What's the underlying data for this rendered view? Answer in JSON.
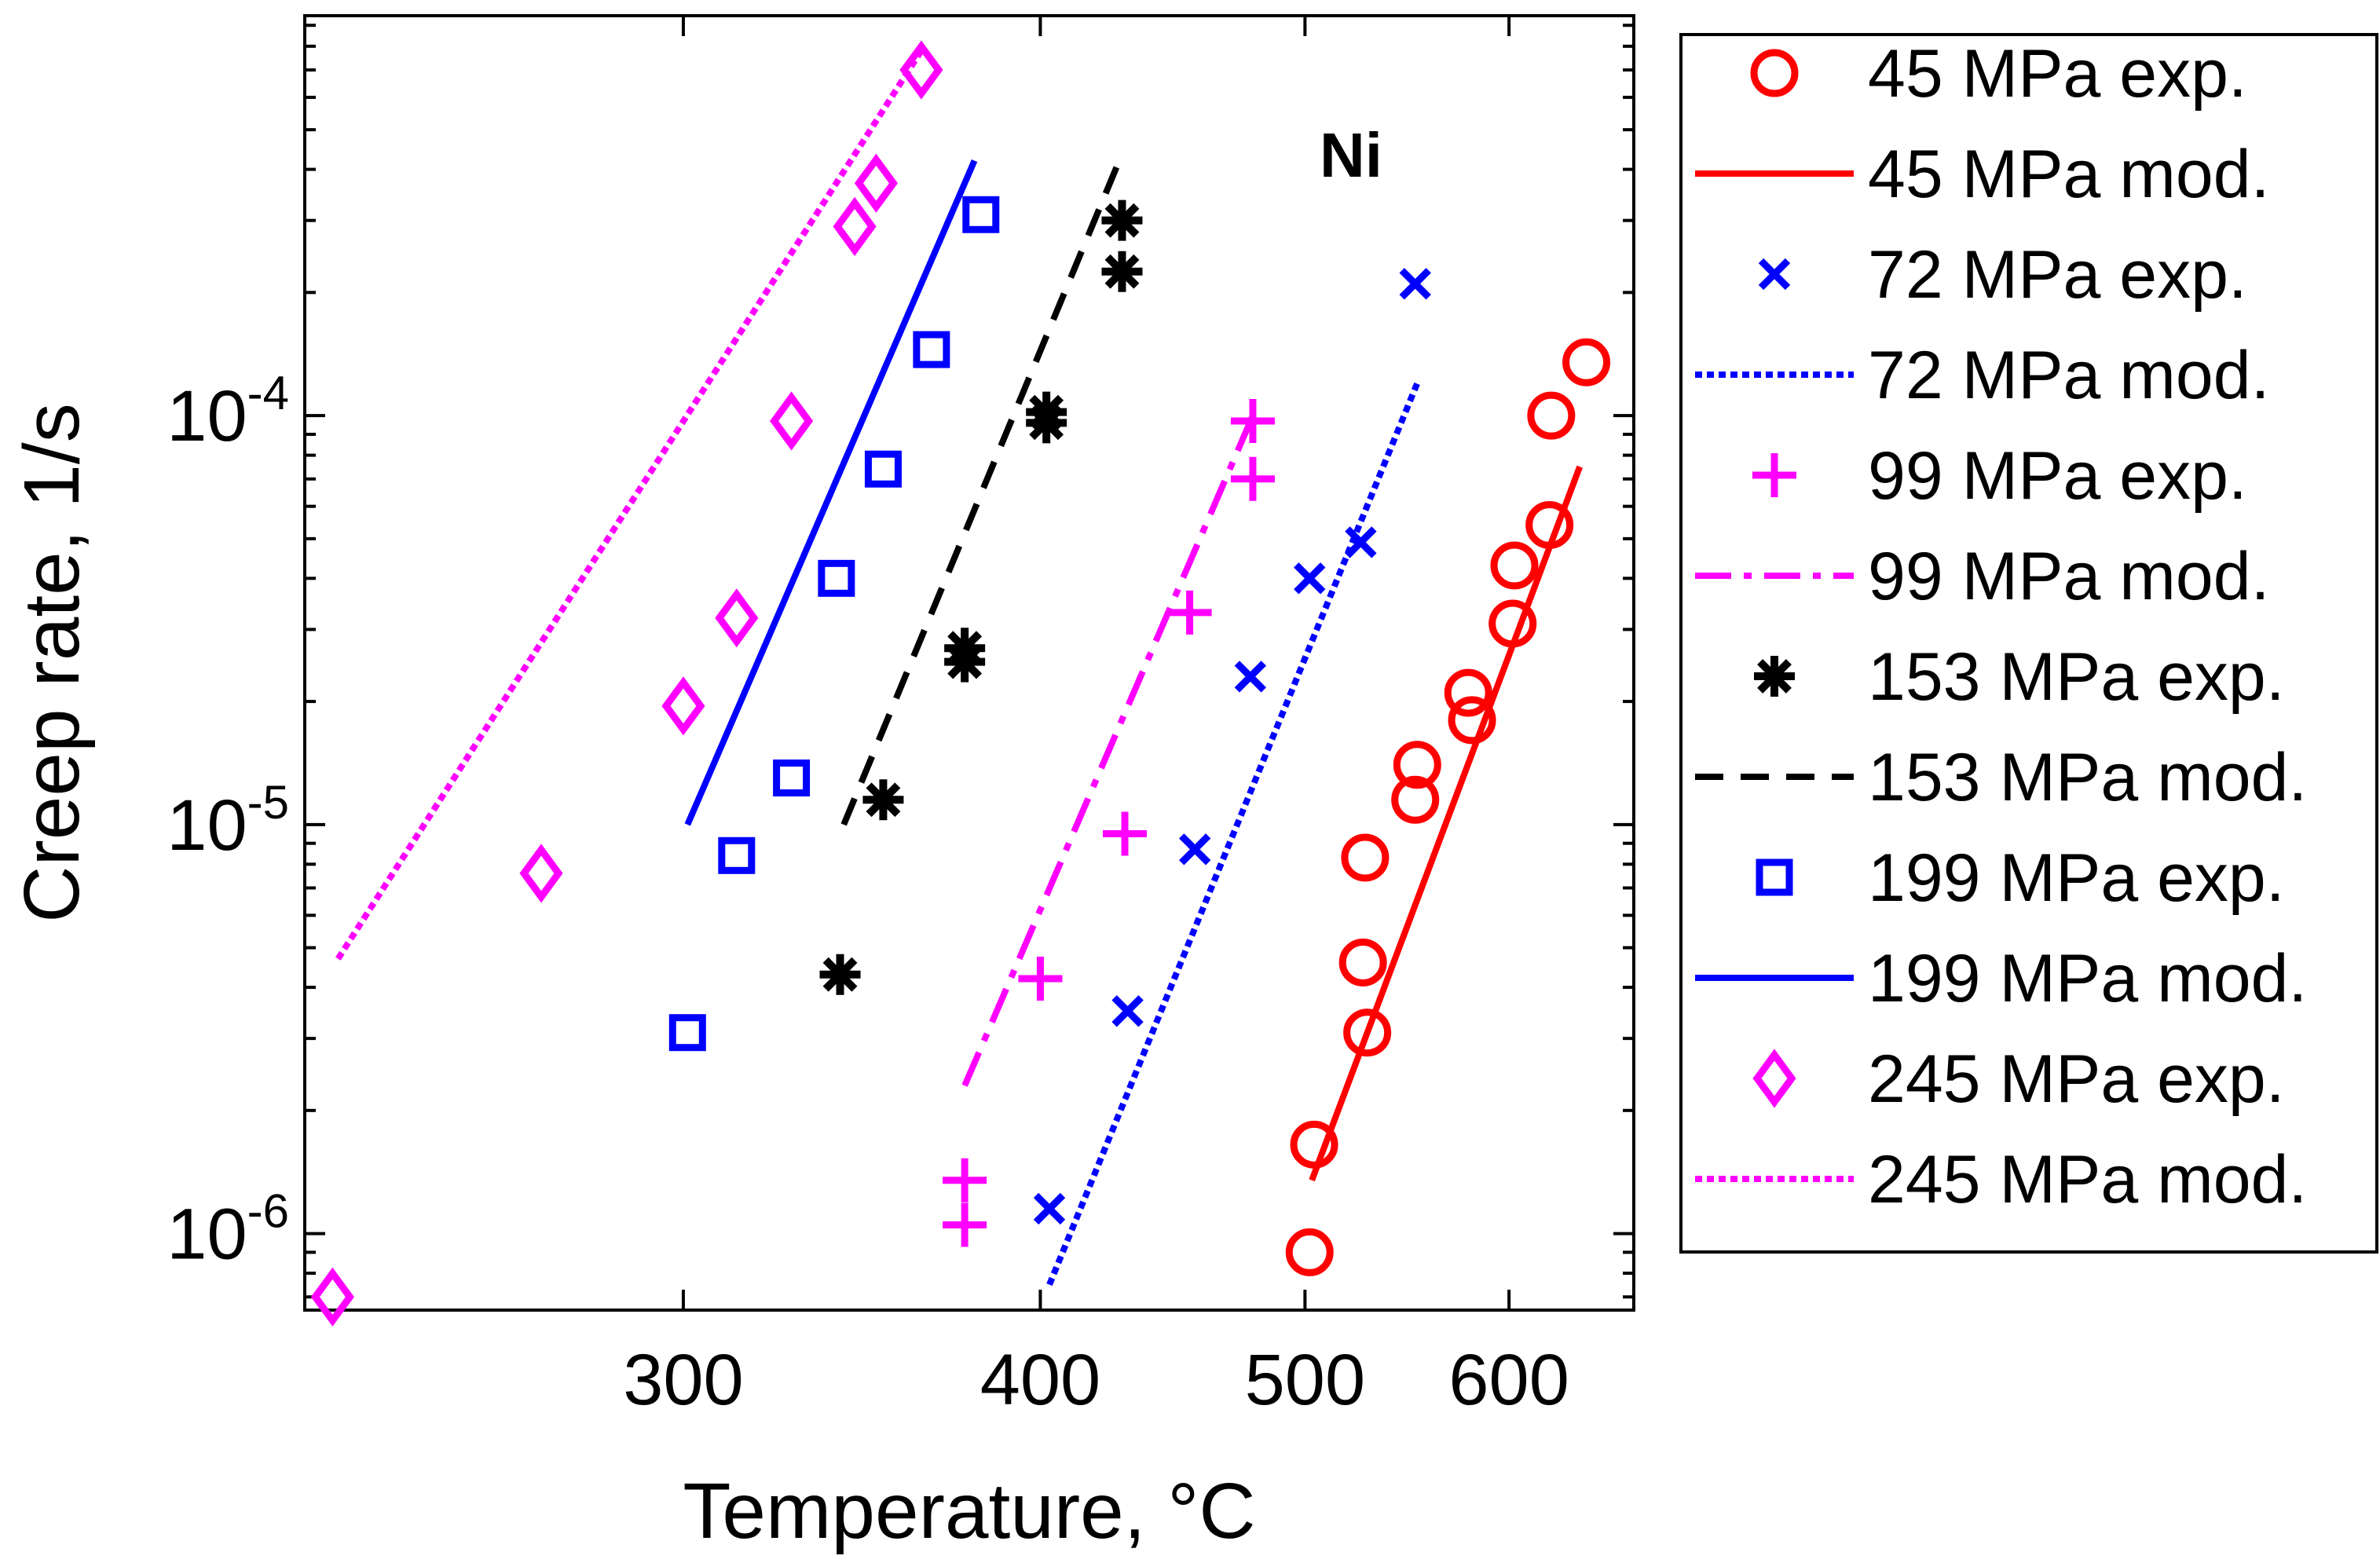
{
  "chart_data": {
    "type": "scatter",
    "title": "",
    "annotation": "Ni",
    "xlabel": "Temperature, °C",
    "ylabel": "Creep rate, 1/s",
    "x_scale": "reciprocal_kelvin",
    "y_scale": "log",
    "xlim": [
      222,
      675
    ],
    "ylim": [
      6.5e-07,
      0.00095
    ],
    "x_ticks": [
      300,
      400,
      500,
      600
    ],
    "x_tick_labels": [
      "300",
      "400",
      "500",
      "600"
    ],
    "y_ticks": [
      {
        "value": 1e-06,
        "base": "10",
        "exp": "-6"
      },
      {
        "value": 1e-05,
        "base": "10",
        "exp": "-5"
      },
      {
        "value": 0.0001,
        "base": "10",
        "exp": "-4"
      }
    ],
    "series": [
      {
        "name": "45 MPa exp.",
        "kind": "exp",
        "marker": "circle",
        "color": "#ff0000",
        "points": [
          [
            502,
            9e-07
          ],
          [
            504,
            1.65e-06
          ],
          [
            528,
            3.1e-06
          ],
          [
            526,
            4.6e-06
          ],
          [
            527,
            8.3e-06
          ],
          [
            551,
            1.15e-05
          ],
          [
            552,
            1.4e-05
          ],
          [
            580,
            1.8e-05
          ],
          [
            578,
            2.1e-05
          ],
          [
            602,
            3.1e-05
          ],
          [
            603,
            4.3e-05
          ],
          [
            623,
            5.4e-05
          ],
          [
            624,
            0.0001
          ],
          [
            645,
            0.000135
          ]
        ]
      },
      {
        "name": "45 MPa mod.",
        "kind": "mod",
        "dash": "solid",
        "color": "#ff0000",
        "points": [
          [
            503,
            1.35e-06
          ],
          [
            641,
            7.5e-05
          ]
        ]
      },
      {
        "name": "72 MPa exp.",
        "kind": "exp",
        "marker": "x",
        "color": "#0000ff",
        "points": [
          [
            403,
            1.15e-06
          ],
          [
            430,
            3.5e-06
          ],
          [
            455,
            8.7e-06
          ],
          [
            477,
            2.3e-05
          ],
          [
            502,
            4e-05
          ],
          [
            525,
            4.9e-05
          ],
          [
            551,
            0.00021
          ]
        ]
      },
      {
        "name": "72 MPa mod.",
        "kind": "mod",
        "dash": "dotted",
        "color": "#0000ff",
        "points": [
          [
            403,
            7.5e-07
          ],
          [
            552,
            0.00012
          ]
        ]
      },
      {
        "name": "99 MPa exp.",
        "kind": "exp",
        "marker": "plus",
        "color": "#ff00ff",
        "points": [
          [
            376,
            1.05e-06
          ],
          [
            376,
            1.35e-06
          ],
          [
            400,
            4.2e-06
          ],
          [
            429,
            9.5e-06
          ],
          [
            453,
            3.3e-05
          ],
          [
            478,
            7e-05
          ],
          [
            478,
            9.7e-05
          ]
        ]
      },
      {
        "name": "99 MPa mod.",
        "kind": "mod",
        "dash": "dashdot",
        "color": "#ff00ff",
        "points": [
          [
            376,
            2.3e-06
          ],
          [
            478,
            0.0001
          ]
        ]
      },
      {
        "name": "153 MPa exp.",
        "kind": "exp",
        "marker": "asterisk",
        "color": "#000000",
        "points": [
          [
            340,
            4.3e-06
          ],
          [
            352,
            1.15e-05
          ],
          [
            376,
            2.5e-05
          ],
          [
            376,
            2.7e-05
          ],
          [
            402,
            9.6e-05
          ],
          [
            402,
            0.000102
          ],
          [
            428,
            0.000225
          ],
          [
            428,
            0.0003
          ]
        ]
      },
      {
        "name": "153 MPa mod.",
        "kind": "mod",
        "dash": "dashed",
        "color": "#000000",
        "points": [
          [
            341,
            1e-05
          ],
          [
            427,
            0.00042
          ]
        ]
      },
      {
        "name": "199 MPa exp.",
        "kind": "exp",
        "marker": "square",
        "color": "#0000ff",
        "points": [
          [
            301,
            3.1e-06
          ],
          [
            313,
            8.4e-06
          ],
          [
            327,
            1.3e-05
          ],
          [
            339,
            4e-05
          ],
          [
            352,
            7.4e-05
          ],
          [
            366,
            0.000145
          ],
          [
            381,
            0.00031
          ]
        ]
      },
      {
        "name": "199 MPa mod.",
        "kind": "mod",
        "dash": "solid",
        "color": "#0000ff",
        "points": [
          [
            301,
            1e-05
          ],
          [
            379,
            0.00042
          ]
        ]
      },
      {
        "name": "245 MPa exp.",
        "kind": "exp",
        "marker": "diamond",
        "color": "#ff00ff",
        "points": [
          [
            227,
            7e-07
          ],
          [
            268,
            7.6e-06
          ],
          [
            300,
            1.95e-05
          ],
          [
            313,
            3.2e-05
          ],
          [
            327,
            9.7e-05
          ],
          [
            344,
            0.00029
          ],
          [
            350,
            0.00037
          ],
          [
            363,
            0.0007
          ]
        ]
      },
      {
        "name": "245 MPa mod.",
        "kind": "mod",
        "dash": "dotted",
        "color": "#ff00ff",
        "points": [
          [
            228,
            4.7e-06
          ],
          [
            363,
            0.00078
          ]
        ]
      }
    ]
  }
}
